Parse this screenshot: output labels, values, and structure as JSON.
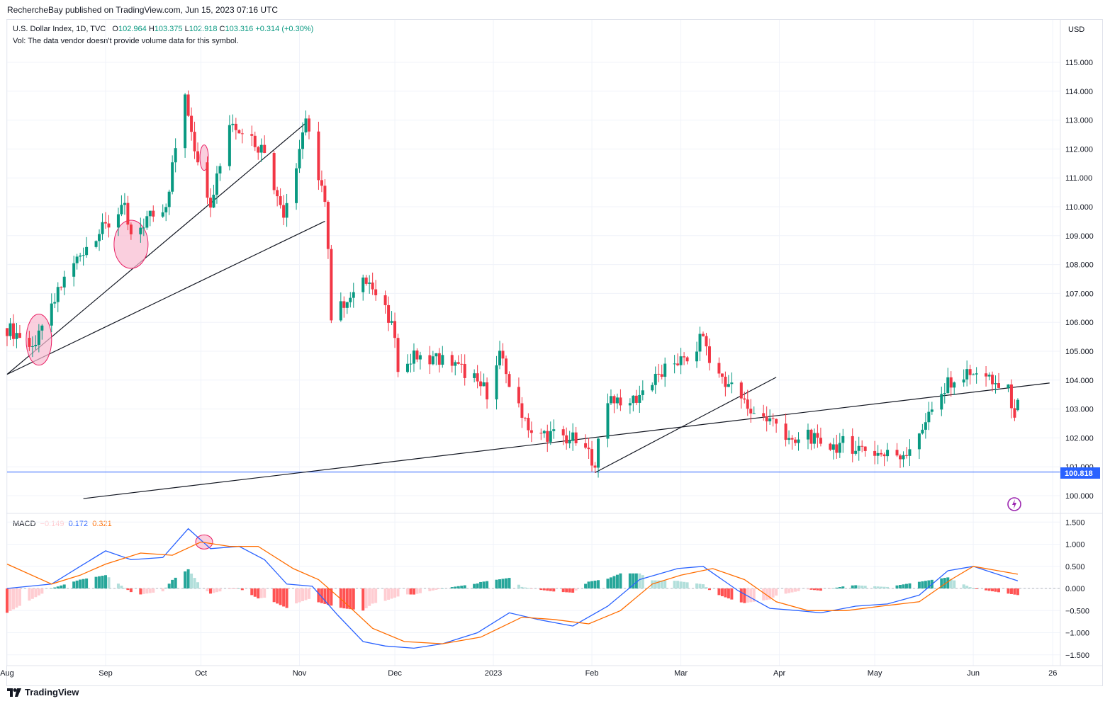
{
  "publisher": "RechercheBay published on TradingView.com, Jun 15, 2023 07:16 UTC",
  "legend": {
    "symbol": "U.S. Dollar Index, 1D, TVC",
    "o_label": "O",
    "o": "102.964",
    "h_label": "H",
    "h": "103.375",
    "l_label": "L",
    "l": "102.918",
    "c_label": "C",
    "c": "103.316",
    "change": "+0.314 (+0.30%)",
    "vol_note": "Vol: The data vendor doesn't provide volume data for this symbol."
  },
  "macd_legend": {
    "label": "MACD",
    "hist": "−0.149",
    "macd": "0.172",
    "signal": "0.321"
  },
  "currency": "USD",
  "last_price_label": "100.818",
  "footer": "TradingView",
  "colors": {
    "up": "#089981",
    "down": "#f23645",
    "macd": "#2962ff",
    "signal": "#ff6d00",
    "hist_up_strong": "#26a69a",
    "hist_up_weak": "#b2dfdb",
    "hist_down_strong": "#ff5252",
    "hist_down_weak": "#ffcdd2",
    "level": "#2962ff",
    "circle": "#f8bbd0"
  },
  "chart_data": [
    {
      "type": "candlestick",
      "title": "U.S. Dollar Index, 1D, TVC",
      "y_axis_ticks": [
        "100.000",
        "101.000",
        "102.000",
        "103.000",
        "104.000",
        "105.000",
        "106.000",
        "107.000",
        "108.000",
        "109.000",
        "110.000",
        "111.000",
        "112.000",
        "113.000",
        "114.000",
        "115.000"
      ],
      "ylim": [
        99.6,
        116.2
      ],
      "x_axis_ticks": [
        "Aug",
        "Sep",
        "Oct",
        "Nov",
        "Dec",
        "2023",
        "Feb",
        "Mar",
        "Apr",
        "May",
        "Jun",
        "26"
      ],
      "horizontal_level": 100.818,
      "anchors": [
        {
          "date": "Aug 1",
          "value": 105.8
        },
        {
          "date": "Aug 10",
          "value": 105.2
        },
        {
          "date": "Aug 19",
          "value": 107.5
        },
        {
          "date": "Aug 26",
          "value": 108.7
        },
        {
          "date": "Sep 1",
          "value": 109.3
        },
        {
          "date": "Sep 7",
          "value": 109.9
        },
        {
          "date": "Sep 9",
          "value": 108.9
        },
        {
          "date": "Sep 15",
          "value": 109.7
        },
        {
          "date": "Sep 20",
          "value": 110.1
        },
        {
          "date": "Sep 26",
          "value": 113.9
        },
        {
          "date": "Sep 29",
          "value": 112.1
        },
        {
          "date": "Oct 4",
          "value": 110.2
        },
        {
          "date": "Oct 10",
          "value": 112.9
        },
        {
          "date": "Oct 13",
          "value": 112.8
        },
        {
          "date": "Oct 21",
          "value": 111.9
        },
        {
          "date": "Oct 27",
          "value": 109.7
        },
        {
          "date": "Nov 3",
          "value": 112.9
        },
        {
          "date": "Nov 9",
          "value": 110.3
        },
        {
          "date": "Nov 11",
          "value": 106.3
        },
        {
          "date": "Nov 18",
          "value": 106.8
        },
        {
          "date": "Nov 21",
          "value": 107.8
        },
        {
          "date": "Nov 30",
          "value": 105.9
        },
        {
          "date": "Dec 2",
          "value": 104.5
        },
        {
          "date": "Dec 9",
          "value": 104.9
        },
        {
          "date": "Dec 16",
          "value": 104.7
        },
        {
          "date": "Dec 23",
          "value": 104.3
        },
        {
          "date": "Dec 30",
          "value": 103.6
        },
        {
          "date": "Jan 3",
          "value": 104.8
        },
        {
          "date": "Jan 6",
          "value": 103.9
        },
        {
          "date": "Jan 13",
          "value": 102.2
        },
        {
          "date": "Jan 20",
          "value": 102.1
        },
        {
          "date": "Jan 27",
          "value": 101.9
        },
        {
          "date": "Feb 2",
          "value": 101.2
        },
        {
          "date": "Feb 6",
          "value": 103.4
        },
        {
          "date": "Feb 14",
          "value": 103.3
        },
        {
          "date": "Feb 20",
          "value": 103.9
        },
        {
          "date": "Feb 27",
          "value": 104.7
        },
        {
          "date": "Mar 3",
          "value": 104.6
        },
        {
          "date": "Mar 8",
          "value": 105.6
        },
        {
          "date": "Mar 10",
          "value": 104.6
        },
        {
          "date": "Mar 15",
          "value": 104.0
        },
        {
          "date": "Mar 21",
          "value": 103.2
        },
        {
          "date": "Mar 24",
          "value": 102.8
        },
        {
          "date": "Mar 31",
          "value": 102.5
        },
        {
          "date": "Apr 5",
          "value": 101.7
        },
        {
          "date": "Apr 10",
          "value": 102.2
        },
        {
          "date": "Apr 14",
          "value": 101.6
        },
        {
          "date": "Apr 21",
          "value": 101.8
        },
        {
          "date": "Apr 28",
          "value": 101.6
        },
        {
          "date": "May 4",
          "value": 101.4
        },
        {
          "date": "May 11",
          "value": 101.5
        },
        {
          "date": "May 18",
          "value": 102.8
        },
        {
          "date": "May 25",
          "value": 104.0
        },
        {
          "date": "May 31",
          "value": 104.2
        },
        {
          "date": "Jun 5",
          "value": 104.0
        },
        {
          "date": "Jun 12",
          "value": 103.6
        },
        {
          "date": "Jun 14",
          "value": 102.9
        },
        {
          "date": "Jun 15",
          "value": 103.3
        }
      ],
      "last_candle": {
        "o": 102.964,
        "h": 103.375,
        "l": 102.918,
        "c": 103.316
      }
    },
    {
      "type": "line",
      "title": "MACD",
      "y_axis_ticks": [
        "1.500",
        "1.000",
        "0.500",
        "0.000",
        "−0.500",
        "−1.000",
        "−1.500"
      ],
      "ylim": [
        -1.6,
        1.6
      ],
      "series": [
        {
          "name": "MACD",
          "points": [
            {
              "date": "Aug 1",
              "value": 0.0
            },
            {
              "date": "Aug 15",
              "value": 0.1
            },
            {
              "date": "Aug 24",
              "value": 0.5
            },
            {
              "date": "Sep 1",
              "value": 0.85
            },
            {
              "date": "Sep 9",
              "value": 0.65
            },
            {
              "date": "Sep 19",
              "value": 0.7
            },
            {
              "date": "Sep 27",
              "value": 1.35
            },
            {
              "date": "Oct 4",
              "value": 0.9
            },
            {
              "date": "Oct 13",
              "value": 0.95
            },
            {
              "date": "Oct 21",
              "value": 0.65
            },
            {
              "date": "Oct 28",
              "value": 0.1
            },
            {
              "date": "Nov 5",
              "value": 0.05
            },
            {
              "date": "Nov 13",
              "value": -0.6
            },
            {
              "date": "Nov 21",
              "value": -1.2
            },
            {
              "date": "Nov 28",
              "value": -1.3
            },
            {
              "date": "Dec 7",
              "value": -1.35
            },
            {
              "date": "Dec 16",
              "value": -1.25
            },
            {
              "date": "Dec 27",
              "value": -1.0
            },
            {
              "date": "Jan 6",
              "value": -0.55
            },
            {
              "date": "Jan 15",
              "value": -0.7
            },
            {
              "date": "Jan 26",
              "value": -0.85
            },
            {
              "date": "Feb 6",
              "value": -0.4
            },
            {
              "date": "Feb 16",
              "value": 0.2
            },
            {
              "date": "Feb 28",
              "value": 0.45
            },
            {
              "date": "Mar 8",
              "value": 0.5
            },
            {
              "date": "Mar 19",
              "value": -0.05
            },
            {
              "date": "Mar 29",
              "value": -0.45
            },
            {
              "date": "Apr 7",
              "value": -0.5
            },
            {
              "date": "Apr 14",
              "value": -0.55
            },
            {
              "date": "Apr 25",
              "value": -0.4
            },
            {
              "date": "May 5",
              "value": -0.35
            },
            {
              "date": "May 15",
              "value": -0.15
            },
            {
              "date": "May 24",
              "value": 0.4
            },
            {
              "date": "Jun 1",
              "value": 0.5
            },
            {
              "date": "Jun 15",
              "value": 0.172
            }
          ]
        },
        {
          "name": "Signal",
          "points": [
            {
              "date": "Aug 1",
              "value": 0.55
            },
            {
              "date": "Aug 15",
              "value": 0.1
            },
            {
              "date": "Aug 24",
              "value": 0.3
            },
            {
              "date": "Sep 1",
              "value": 0.55
            },
            {
              "date": "Sep 12",
              "value": 0.8
            },
            {
              "date": "Sep 22",
              "value": 0.75
            },
            {
              "date": "Oct 1",
              "value": 1.05
            },
            {
              "date": "Oct 10",
              "value": 0.95
            },
            {
              "date": "Oct 19",
              "value": 0.95
            },
            {
              "date": "Oct 30",
              "value": 0.45
            },
            {
              "date": "Nov 7",
              "value": 0.2
            },
            {
              "date": "Nov 15",
              "value": -0.3
            },
            {
              "date": "Nov 24",
              "value": -0.9
            },
            {
              "date": "Dec 4",
              "value": -1.2
            },
            {
              "date": "Dec 16",
              "value": -1.25
            },
            {
              "date": "Dec 28",
              "value": -1.1
            },
            {
              "date": "Jan 10",
              "value": -0.65
            },
            {
              "date": "Jan 20",
              "value": -0.7
            },
            {
              "date": "Jan 31",
              "value": -0.8
            },
            {
              "date": "Feb 10",
              "value": -0.5
            },
            {
              "date": "Feb 20",
              "value": 0.1
            },
            {
              "date": "Mar 1",
              "value": 0.3
            },
            {
              "date": "Mar 11",
              "value": 0.45
            },
            {
              "date": "Mar 21",
              "value": 0.2
            },
            {
              "date": "Mar 31",
              "value": -0.3
            },
            {
              "date": "Apr 10",
              "value": -0.5
            },
            {
              "date": "Apr 22",
              "value": -0.5
            },
            {
              "date": "May 3",
              "value": -0.4
            },
            {
              "date": "May 15",
              "value": -0.3
            },
            {
              "date": "May 25",
              "value": 0.2
            },
            {
              "date": "Jun 1",
              "value": 0.5
            },
            {
              "date": "Jun 15",
              "value": 0.321
            }
          ]
        }
      ],
      "histogram_last": -0.149
    }
  ]
}
